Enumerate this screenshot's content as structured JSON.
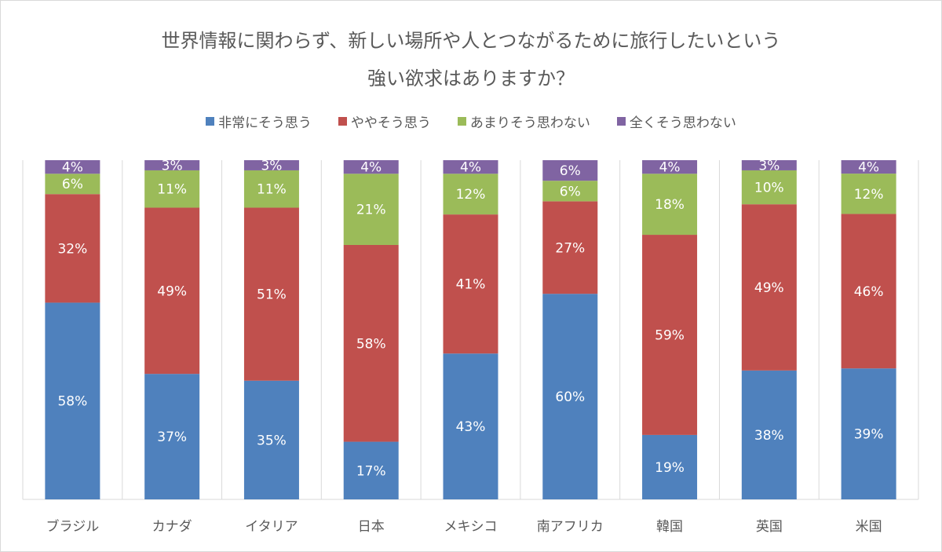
{
  "chart_data": {
    "type": "bar",
    "stacked": true,
    "title": [
      "世界情報に関わらず、新しい場所や人とつながるために旅行したいという",
      "強い欲求はありますか？"
    ],
    "categories": [
      "ブラジル",
      "カナダ",
      "イタリア",
      "日本",
      "メキシコ",
      "南アフリカ",
      "韓国",
      "英国",
      "米国"
    ],
    "series": [
      {
        "name": "非常にそう思う",
        "color": "#4F81BD",
        "values": [
          58,
          37,
          35,
          17,
          43,
          60,
          19,
          38,
          39
        ]
      },
      {
        "name": "ややそう思う",
        "color": "#C0504D",
        "values": [
          32,
          49,
          51,
          58,
          41,
          27,
          59,
          49,
          46
        ]
      },
      {
        "name": "あまりそう思わない",
        "color": "#9BBB59",
        "values": [
          6,
          11,
          11,
          21,
          12,
          6,
          18,
          10,
          12
        ]
      },
      {
        "name": "全くそう思わない",
        "color": "#8064A2",
        "values": [
          4,
          3,
          3,
          4,
          4,
          6,
          4,
          3,
          4
        ]
      }
    ],
    "value_format": "percent",
    "ylim": [
      0,
      100
    ],
    "grid": "vertical category separators",
    "legend": "top"
  }
}
